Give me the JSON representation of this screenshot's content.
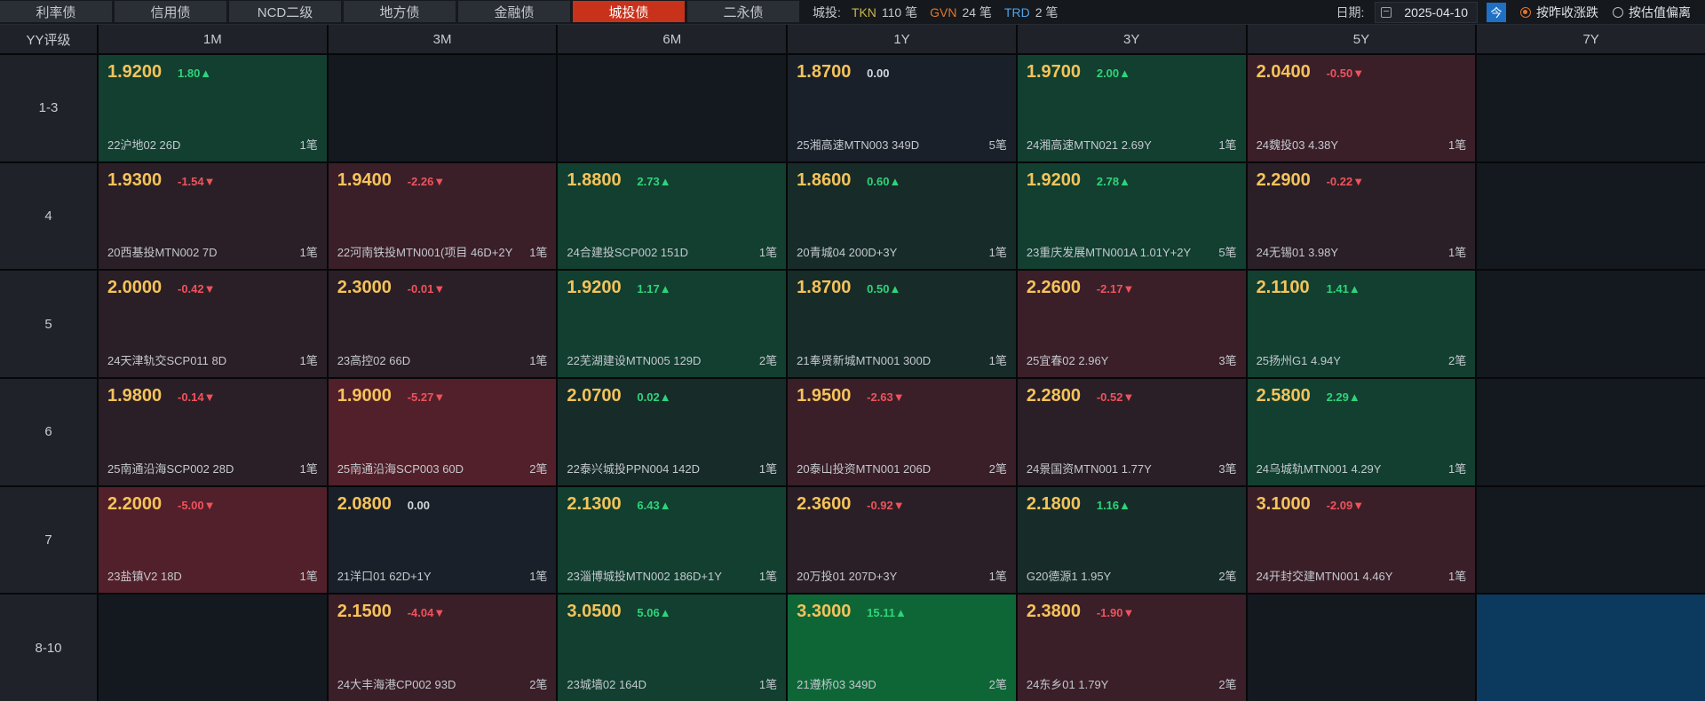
{
  "tabs": [
    {
      "label": "利率债",
      "active": false
    },
    {
      "label": "信用债",
      "active": false
    },
    {
      "label": "NCD二级",
      "active": false
    },
    {
      "label": "地方债",
      "active": false
    },
    {
      "label": "金融债",
      "active": false
    },
    {
      "label": "城投债",
      "active": true
    },
    {
      "label": "二永债",
      "active": false
    }
  ],
  "stats": {
    "label": "城投:",
    "items": [
      {
        "code": "TKN",
        "count": "110 笔"
      },
      {
        "code": "GVN",
        "count": "24 笔"
      },
      {
        "code": "TRD",
        "count": "2 笔"
      }
    ]
  },
  "controls": {
    "date_label": "日期:",
    "date_value": "2025-04-10",
    "today_label": "今",
    "radio_close": "按昨收涨跌",
    "radio_valuation": "按估值偏离"
  },
  "grid": {
    "corner": "YY评级",
    "columns": [
      "1M",
      "3M",
      "6M",
      "1Y",
      "3Y",
      "5Y",
      "7Y"
    ],
    "rows": [
      {
        "label": "1-3",
        "cells": [
          {
            "yield": "1.9200",
            "change": "1.80▲",
            "bond": "22沪地02 26D",
            "count": "1笔",
            "tone": "up2"
          },
          null,
          null,
          {
            "yield": "1.8700",
            "change": "0.00",
            "bond": "25湘高速MTN003 349D",
            "count": "5笔",
            "tone": "flat"
          },
          {
            "yield": "1.9700",
            "change": "2.00▲",
            "bond": "24湘高速MTN021 2.69Y",
            "count": "1笔",
            "tone": "up2"
          },
          {
            "yield": "2.0400",
            "change": "-0.50▼",
            "bond": "24魏投03 4.38Y",
            "count": "1笔",
            "tone": "down2"
          },
          null
        ]
      },
      {
        "label": "4",
        "cells": [
          {
            "yield": "1.9300",
            "change": "-1.54▼",
            "bond": "20西基投MTN002 7D",
            "count": "1笔",
            "tone": "down1"
          },
          {
            "yield": "1.9400",
            "change": "-2.26▼",
            "bond": "22河南铁投MTN001(项目 46D+2Y",
            "count": "1笔",
            "tone": "down2"
          },
          {
            "yield": "1.8800",
            "change": "2.73▲",
            "bond": "24合建投SCP002 151D",
            "count": "1笔",
            "tone": "up2"
          },
          {
            "yield": "1.8600",
            "change": "0.60▲",
            "bond": "20青城04 200D+3Y",
            "count": "1笔",
            "tone": "up1"
          },
          {
            "yield": "1.9200",
            "change": "2.78▲",
            "bond": "23重庆发展MTN001A 1.01Y+2Y",
            "count": "5笔",
            "tone": "up2"
          },
          {
            "yield": "2.2900",
            "change": "-0.22▼",
            "bond": "24无锡01 3.98Y",
            "count": "1笔",
            "tone": "down1"
          },
          null
        ]
      },
      {
        "label": "5",
        "cells": [
          {
            "yield": "2.0000",
            "change": "-0.42▼",
            "bond": "24天津轨交SCP011 8D",
            "count": "1笔",
            "tone": "down1"
          },
          {
            "yield": "2.3000",
            "change": "-0.01▼",
            "bond": "23高控02 66D",
            "count": "1笔",
            "tone": "down1"
          },
          {
            "yield": "1.9200",
            "change": "1.17▲",
            "bond": "22芜湖建设MTN005 129D",
            "count": "2笔",
            "tone": "up2"
          },
          {
            "yield": "1.8700",
            "change": "0.50▲",
            "bond": "21奉贤新城MTN001 300D",
            "count": "1笔",
            "tone": "up1"
          },
          {
            "yield": "2.2600",
            "change": "-2.17▼",
            "bond": "25宜春02 2.96Y",
            "count": "3笔",
            "tone": "down2"
          },
          {
            "yield": "2.1100",
            "change": "1.41▲",
            "bond": "25扬州G1 4.94Y",
            "count": "2笔",
            "tone": "up2"
          },
          null
        ]
      },
      {
        "label": "6",
        "cells": [
          {
            "yield": "1.9800",
            "change": "-0.14▼",
            "bond": "25南通沿海SCP002 28D",
            "count": "1笔",
            "tone": "down1"
          },
          {
            "yield": "1.9000",
            "change": "-5.27▼",
            "bond": "25南通沿海SCP003 60D",
            "count": "2笔",
            "tone": "down3"
          },
          {
            "yield": "2.0700",
            "change": "0.02▲",
            "bond": "22泰兴城投PPN004 142D",
            "count": "1笔",
            "tone": "up1"
          },
          {
            "yield": "1.9500",
            "change": "-2.63▼",
            "bond": "20泰山投资MTN001 206D",
            "count": "2笔",
            "tone": "down2"
          },
          {
            "yield": "2.2800",
            "change": "-0.52▼",
            "bond": "24景国资MTN001 1.77Y",
            "count": "3笔",
            "tone": "down1"
          },
          {
            "yield": "2.5800",
            "change": "2.29▲",
            "bond": "24乌城轨MTN001 4.29Y",
            "count": "1笔",
            "tone": "up2"
          },
          null
        ]
      },
      {
        "label": "7",
        "cells": [
          {
            "yield": "2.2000",
            "change": "-5.00▼",
            "bond": "23盐镇V2 18D",
            "count": "1笔",
            "tone": "down3"
          },
          {
            "yield": "2.0800",
            "change": "0.00",
            "bond": "21洋口01 62D+1Y",
            "count": "1笔",
            "tone": "flat"
          },
          {
            "yield": "2.1300",
            "change": "6.43▲",
            "bond": "23淄博城投MTN002 186D+1Y",
            "count": "1笔",
            "tone": "up2"
          },
          {
            "yield": "2.3600",
            "change": "-0.92▼",
            "bond": "20万投01 207D+3Y",
            "count": "1笔",
            "tone": "down1"
          },
          {
            "yield": "2.1800",
            "change": "1.16▲",
            "bond": "G20德源1 1.95Y",
            "count": "2笔",
            "tone": "up1"
          },
          {
            "yield": "3.1000",
            "change": "-2.09▼",
            "bond": "24开封交建MTN001 4.46Y",
            "count": "1笔",
            "tone": "down2"
          },
          null
        ]
      },
      {
        "label": "8-10",
        "cells": [
          null,
          {
            "yield": "2.1500",
            "change": "-4.04▼",
            "bond": "24大丰海港CP002 93D",
            "count": "2笔",
            "tone": "down2"
          },
          {
            "yield": "3.0500",
            "change": "5.06▲",
            "bond": "23城墙02 164D",
            "count": "1笔",
            "tone": "up2"
          },
          {
            "yield": "3.3000",
            "change": "15.11▲",
            "bond": "21遵桥03 349D",
            "count": "2笔",
            "tone": "up3"
          },
          {
            "yield": "2.3800",
            "change": "-1.90▼",
            "bond": "24东乡01 1.79Y",
            "count": "2笔",
            "tone": "down2"
          },
          null,
          {
            "selected": true
          }
        ]
      }
    ]
  },
  "colors": {
    "active_tab": "#c8321b",
    "yield_text": "#f5c35a",
    "up": "#2ed47a",
    "down": "#f0525c"
  }
}
